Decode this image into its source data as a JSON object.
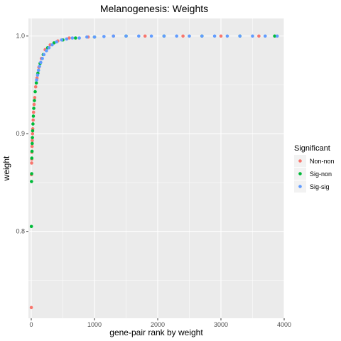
{
  "chart_data": {
    "type": "scatter",
    "title": "Melanogenesis: Weights",
    "xlabel": "gene-pair rank by weight",
    "ylabel": "weight",
    "xlim": [
      -45,
      4000
    ],
    "ylim": [
      0.711,
      1.018
    ],
    "x_ticks": [
      0,
      1000,
      2000,
      3000,
      4000
    ],
    "x_tick_labels": [
      "0",
      "1000",
      "2000",
      "3000",
      "4000"
    ],
    "y_ticks": [
      0.8,
      0.9,
      1.0
    ],
    "y_tick_labels": [
      "0.8",
      "0.9",
      "1.0"
    ],
    "grid": true,
    "legend": {
      "title": "Significant",
      "position": "right",
      "entries": [
        {
          "label": "Non-non",
          "color": "#F8766D"
        },
        {
          "label": "Sig-non",
          "color": "#00BA38"
        },
        {
          "label": "Sig-sig",
          "color": "#619CFF"
        }
      ]
    },
    "series": [
      {
        "name": "Non-non",
        "color": "#F8766D",
        "x": [
          1,
          3,
          6,
          8,
          10,
          13,
          16,
          20,
          24,
          30,
          36,
          45,
          55,
          70,
          90,
          120,
          160,
          220,
          300,
          420,
          600,
          900,
          1300,
          1800,
          2400,
          3000,
          3600
        ],
        "y": [
          0.722,
          0.858,
          0.87,
          0.874,
          0.881,
          0.887,
          0.893,
          0.9,
          0.905,
          0.914,
          0.922,
          0.93,
          0.937,
          0.948,
          0.957,
          0.968,
          0.977,
          0.986,
          0.991,
          0.995,
          0.998,
          0.999,
          1.0,
          1.0,
          1.0,
          1.0,
          1.0
        ]
      },
      {
        "name": "Sig-non",
        "color": "#00BA38",
        "x": [
          2,
          4,
          7,
          9,
          12,
          15,
          18,
          22,
          27,
          33,
          40,
          50,
          62,
          80,
          105,
          140,
          190,
          260,
          360,
          500,
          700,
          1000,
          1500,
          2100,
          2700,
          3300,
          3850
        ],
        "y": [
          0.805,
          0.851,
          0.859,
          0.875,
          0.882,
          0.89,
          0.896,
          0.903,
          0.91,
          0.918,
          0.926,
          0.934,
          0.943,
          0.952,
          0.962,
          0.972,
          0.981,
          0.988,
          0.993,
          0.996,
          0.998,
          0.999,
          1.0,
          1.0,
          1.0,
          1.0,
          1.0
        ]
      },
      {
        "name": "Sig-sig",
        "color": "#619CFF",
        "x": [
          85,
          100,
          115,
          130,
          150,
          175,
          200,
          240,
          280,
          330,
          400,
          480,
          560,
          650,
          760,
          880,
          1000,
          1150,
          1300,
          1500,
          1700,
          1900,
          2100,
          2300,
          2500,
          2700,
          2900,
          3100,
          3300,
          3500,
          3700,
          3890
        ],
        "y": [
          0.955,
          0.96,
          0.965,
          0.969,
          0.973,
          0.977,
          0.981,
          0.985,
          0.988,
          0.991,
          0.994,
          0.996,
          0.997,
          0.998,
          0.998,
          0.999,
          0.999,
          0.9995,
          1.0,
          1.0,
          1.0,
          1.0,
          1.0,
          1.0,
          1.0,
          1.0,
          1.0,
          1.0,
          1.0,
          1.0,
          1.0,
          1.0
        ]
      }
    ]
  }
}
